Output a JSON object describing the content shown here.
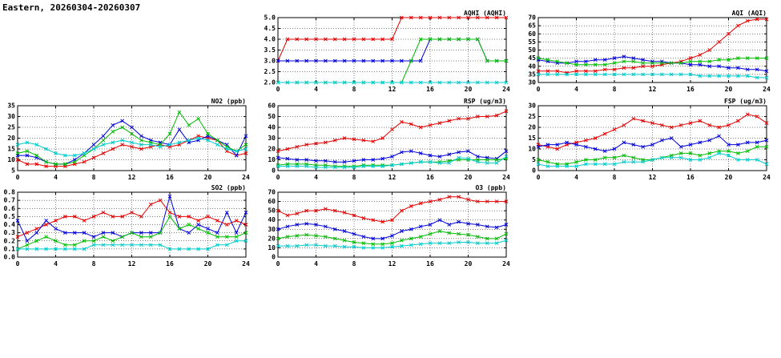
{
  "page_title": "Eastern, 20260304-20260307",
  "colors": {
    "red": "#e60000",
    "blue": "#0000dd",
    "green": "#00bb00",
    "cyan": "#00cccc"
  },
  "chart_data": {
    "type": "line",
    "x_hours": [
      0,
      1,
      2,
      3,
      4,
      5,
      6,
      7,
      8,
      9,
      10,
      11,
      12,
      13,
      14,
      15,
      16,
      17,
      18,
      19,
      20,
      21,
      22,
      23,
      24
    ],
    "charts": [
      {
        "id": "aqhi",
        "type": "line",
        "title": "AQHI (AQHI)",
        "x_min": 0,
        "x_max": 24,
        "x_ticks": [
          0,
          4,
          8,
          12,
          16,
          20,
          24
        ],
        "y_min": 2,
        "y_max": 5,
        "y_ticks": [
          2,
          2.5,
          3,
          3.5,
          4,
          4.5,
          5
        ],
        "y_decimals": 1,
        "series": [
          {
            "name": "red",
            "color": "red",
            "values": [
              3,
              4,
              4,
              4,
              4,
              4,
              4,
              4,
              4,
              4,
              4,
              4,
              4,
              5,
              5,
              5,
              5,
              5,
              5,
              5,
              5,
              5,
              5,
              5,
              5
            ]
          },
          {
            "name": "blue",
            "color": "blue",
            "values": [
              3,
              3,
              3,
              3,
              3,
              3,
              3,
              3,
              3,
              3,
              3,
              3,
              3,
              3,
              3,
              3,
              4,
              4,
              4,
              4,
              4,
              4,
              3,
              3,
              3
            ]
          },
          {
            "name": "green",
            "color": "green",
            "values": [
              2,
              2,
              2,
              2,
              2,
              2,
              2,
              2,
              2,
              2,
              2,
              2,
              2,
              2,
              3,
              4,
              4,
              4,
              4,
              4,
              4,
              4,
              3,
              3,
              3
            ]
          },
          {
            "name": "cyan",
            "color": "cyan",
            "values": [
              2,
              2,
              2,
              2,
              2,
              2,
              2,
              2,
              2,
              2,
              2,
              2,
              2,
              2,
              2,
              2,
              2,
              2,
              2,
              2,
              2,
              2,
              2,
              2,
              2
            ]
          }
        ]
      },
      {
        "id": "aqi",
        "type": "line",
        "title": "AQI (AQI)",
        "x_min": 0,
        "x_max": 24,
        "x_ticks": [
          0,
          4,
          8,
          12,
          16,
          20,
          24
        ],
        "y_min": 30,
        "y_max": 70,
        "y_ticks": [
          30,
          35,
          40,
          45,
          50,
          55,
          60,
          65,
          70
        ],
        "y_decimals": 0,
        "series": [
          {
            "name": "red",
            "color": "red",
            "values": [
              37,
              37,
              37,
              36,
              37,
              37,
              37,
              38,
              38,
              39,
              39,
              40,
              40,
              41,
              42,
              43,
              45,
              47,
              50,
              55,
              60,
              65,
              68,
              69,
              69
            ]
          },
          {
            "name": "blue",
            "color": "blue",
            "values": [
              44,
              43,
              42,
              42,
              43,
              43,
              44,
              44,
              45,
              46,
              45,
              44,
              43,
              43,
              42,
              42,
              41,
              41,
              40,
              40,
              39,
              39,
              38,
              38,
              37
            ]
          },
          {
            "name": "green",
            "color": "green",
            "values": [
              45,
              44,
              43,
              42,
              41,
              41,
              41,
              41,
              42,
              43,
              43,
              42,
              42,
              42,
              42,
              42,
              43,
              43,
              43,
              44,
              44,
              45,
              45,
              45,
              45
            ]
          },
          {
            "name": "cyan",
            "color": "cyan",
            "values": [
              35,
              35,
              35,
              35,
              35,
              35,
              35,
              35,
              35,
              35,
              35,
              35,
              35,
              35,
              35,
              35,
              35,
              34,
              34,
              34,
              34,
              34,
              34,
              33,
              33
            ]
          }
        ]
      },
      {
        "id": "no2",
        "type": "line",
        "title": "NO2 (ppb)",
        "x_min": 0,
        "x_max": 24,
        "x_ticks": [
          0,
          4,
          8,
          12,
          16,
          20,
          24
        ],
        "y_min": 5,
        "y_max": 35,
        "y_ticks": [
          5,
          10,
          15,
          20,
          25,
          30,
          35
        ],
        "y_decimals": 0,
        "series": [
          {
            "name": "red",
            "color": "red",
            "values": [
              10,
              8,
              8,
              7,
              7,
              7,
              8,
              9,
              11,
              13,
              15,
              17,
              16,
              15,
              16,
              17,
              16,
              17,
              19,
              21,
              20,
              19,
              14,
              12,
              13
            ]
          },
          {
            "name": "blue",
            "color": "blue",
            "values": [
              12,
              12,
              11,
              9,
              8,
              8,
              10,
              13,
              17,
              21,
              26,
              28,
              25,
              21,
              19,
              18,
              17,
              24,
              18,
              19,
              21,
              19,
              17,
              12,
              21
            ]
          },
          {
            "name": "green",
            "color": "green",
            "values": [
              13,
              14,
              12,
              9,
              8,
              8,
              9,
              12,
              15,
              19,
              23,
              25,
              22,
              19,
              18,
              17,
              22,
              32,
              26,
              29,
              22,
              19,
              16,
              14,
              17
            ]
          },
          {
            "name": "cyan",
            "color": "cyan",
            "values": [
              17,
              18,
              17,
              15,
              13,
              12,
              12,
              13,
              15,
              17,
              18,
              19,
              18,
              17,
              17,
              16,
              17,
              18,
              19,
              20,
              19,
              17,
              15,
              14,
              15
            ]
          }
        ]
      },
      {
        "id": "rsp",
        "type": "line",
        "title": "RSP (ug/m3)",
        "x_min": 0,
        "x_max": 24,
        "x_ticks": [
          0,
          4,
          8,
          12,
          16,
          20,
          24
        ],
        "y_min": 0,
        "y_max": 60,
        "y_ticks": [
          0,
          10,
          20,
          30,
          40,
          50,
          60
        ],
        "y_decimals": 0,
        "series": [
          {
            "name": "red",
            "color": "red",
            "values": [
              18,
              20,
              22,
              24,
              25,
              26,
              28,
              30,
              29,
              28,
              27,
              30,
              38,
              45,
              43,
              40,
              42,
              44,
              46,
              48,
              48,
              50,
              50,
              51,
              55
            ]
          },
          {
            "name": "blue",
            "color": "blue",
            "values": [
              12,
              11,
              10,
              10,
              9,
              9,
              8,
              8,
              9,
              10,
              10,
              11,
              13,
              17,
              18,
              16,
              14,
              13,
              15,
              17,
              18,
              13,
              12,
              11,
              18
            ]
          },
          {
            "name": "green",
            "color": "green",
            "values": [
              5,
              6,
              6,
              6,
              5,
              5,
              4,
              4,
              4,
              5,
              5,
              5,
              5,
              6,
              7,
              8,
              8,
              8,
              9,
              10,
              10,
              10,
              10,
              10,
              11
            ]
          },
          {
            "name": "cyan",
            "color": "cyan",
            "values": [
              4,
              4,
              4,
              4,
              3,
              3,
              3,
              3,
              3,
              4,
              4,
              4,
              5,
              6,
              7,
              8,
              8,
              7,
              7,
              12,
              11,
              8,
              7,
              7,
              13
            ]
          }
        ]
      },
      {
        "id": "fsp",
        "type": "line",
        "title": "FSP (ug/m3)",
        "x_min": 0,
        "x_max": 24,
        "x_ticks": [
          0,
          4,
          8,
          12,
          16,
          20,
          24
        ],
        "y_min": 0,
        "y_max": 30,
        "y_ticks": [
          0,
          5,
          10,
          15,
          20,
          25,
          30
        ],
        "y_decimals": 0,
        "series": [
          {
            "name": "red",
            "color": "red",
            "values": [
              12,
              11,
              10,
              12,
              13,
              14,
              15,
              17,
              19,
              21,
              24,
              23,
              22,
              21,
              20,
              21,
              22,
              23,
              21,
              20,
              21,
              23,
              26,
              25,
              22
            ]
          },
          {
            "name": "blue",
            "color": "blue",
            "values": [
              11,
              12,
              12,
              13,
              12,
              11,
              10,
              9,
              10,
              13,
              12,
              11,
              12,
              14,
              15,
              11,
              12,
              13,
              14,
              16,
              12,
              12,
              13,
              13,
              14
            ]
          },
          {
            "name": "green",
            "color": "green",
            "values": [
              5,
              4,
              3,
              3,
              4,
              5,
              5,
              6,
              6,
              7,
              6,
              5,
              5,
              6,
              7,
              8,
              8,
              7,
              8,
              9,
              9,
              8,
              9,
              11,
              11
            ]
          },
          {
            "name": "cyan",
            "color": "cyan",
            "values": [
              3,
              2,
              2,
              2,
              2,
              3,
              3,
              3,
              3,
              4,
              4,
              4,
              5,
              6,
              6,
              6,
              5,
              5,
              6,
              8,
              7,
              5,
              5,
              5,
              3
            ]
          }
        ]
      },
      {
        "id": "so2",
        "type": "line",
        "title": "SO2 (ppb)",
        "x_min": 0,
        "x_max": 24,
        "x_ticks": [
          0,
          4,
          8,
          12,
          16,
          20,
          24
        ],
        "y_min": 0,
        "y_max": 0.8,
        "y_ticks": [
          0,
          0.1,
          0.2,
          0.3,
          0.4,
          0.5,
          0.6,
          0.7,
          0.8
        ],
        "y_decimals": 1,
        "series": [
          {
            "name": "red",
            "color": "red",
            "values": [
              0.25,
              0.3,
              0.35,
              0.4,
              0.45,
              0.5,
              0.5,
              0.45,
              0.5,
              0.55,
              0.5,
              0.5,
              0.55,
              0.5,
              0.65,
              0.7,
              0.55,
              0.5,
              0.5,
              0.45,
              0.5,
              0.45,
              0.4,
              0.45,
              0.4
            ]
          },
          {
            "name": "blue",
            "color": "blue",
            "values": [
              0.45,
              0.2,
              0.3,
              0.45,
              0.35,
              0.3,
              0.3,
              0.3,
              0.25,
              0.3,
              0.3,
              0.25,
              0.3,
              0.3,
              0.3,
              0.3,
              0.75,
              0.35,
              0.3,
              0.4,
              0.35,
              0.3,
              0.55,
              0.3,
              0.55
            ]
          },
          {
            "name": "green",
            "color": "green",
            "values": [
              0.1,
              0.15,
              0.2,
              0.25,
              0.2,
              0.15,
              0.15,
              0.2,
              0.2,
              0.25,
              0.2,
              0.25,
              0.3,
              0.25,
              0.25,
              0.3,
              0.5,
              0.35,
              0.4,
              0.35,
              0.3,
              0.25,
              0.25,
              0.25,
              0.3
            ]
          },
          {
            "name": "cyan",
            "color": "cyan",
            "values": [
              0.1,
              0.1,
              0.1,
              0.1,
              0.1,
              0.1,
              0.1,
              0.1,
              0.15,
              0.15,
              0.15,
              0.15,
              0.15,
              0.15,
              0.15,
              0.15,
              0.1,
              0.1,
              0.1,
              0.1,
              0.1,
              0.15,
              0.15,
              0.2,
              0.2
            ]
          }
        ]
      },
      {
        "id": "o3",
        "type": "line",
        "title": "O3 (ppb)",
        "x_min": 0,
        "x_max": 24,
        "x_ticks": [
          0,
          4,
          8,
          12,
          16,
          20,
          24
        ],
        "y_min": 0,
        "y_max": 70,
        "y_ticks": [
          0,
          10,
          20,
          30,
          40,
          50,
          60,
          70
        ],
        "y_decimals": 0,
        "series": [
          {
            "name": "red",
            "color": "red",
            "values": [
              50,
              45,
              47,
              50,
              50,
              52,
              50,
              48,
              45,
              42,
              40,
              38,
              40,
              50,
              55,
              58,
              60,
              62,
              65,
              65,
              62,
              60,
              60,
              60,
              60
            ]
          },
          {
            "name": "blue",
            "color": "blue",
            "values": [
              30,
              33,
              35,
              36,
              35,
              33,
              30,
              28,
              25,
              22,
              20,
              20,
              23,
              28,
              30,
              33,
              35,
              40,
              35,
              38,
              36,
              35,
              33,
              32,
              35
            ]
          },
          {
            "name": "green",
            "color": "green",
            "values": [
              20,
              22,
              23,
              24,
              23,
              22,
              20,
              18,
              16,
              15,
              14,
              14,
              15,
              18,
              20,
              22,
              25,
              28,
              26,
              25,
              24,
              22,
              20,
              20,
              25
            ]
          },
          {
            "name": "cyan",
            "color": "cyan",
            "values": [
              12,
              12,
              12,
              13,
              13,
              12,
              12,
              11,
              11,
              10,
              10,
              10,
              11,
              12,
              13,
              14,
              15,
              15,
              15,
              16,
              16,
              15,
              15,
              15,
              18
            ]
          }
        ]
      }
    ]
  }
}
